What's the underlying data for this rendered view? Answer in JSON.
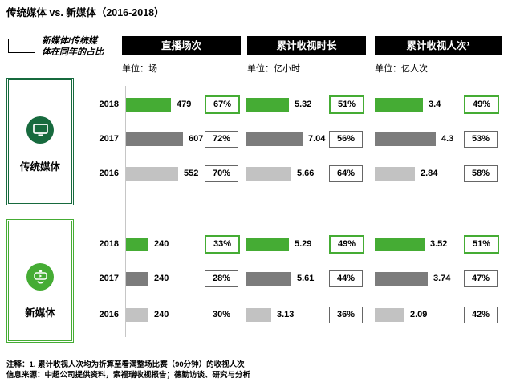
{
  "title": "传统媒体 vs. 新媒体（2016-2018）",
  "legend": {
    "lines": [
      "新媒体/传统媒",
      "体在同年的占比"
    ],
    "full_label": "新媒体/传统媒体在同年的占比"
  },
  "groups": [
    {
      "label": "传统媒体",
      "icon": "tv-icon"
    },
    {
      "label": "新媒体",
      "icon": "vr-player-icon"
    }
  ],
  "footnotes": [
    "注释：1. 累计收视人次均为折算至看满整场比赛（90分钟）的收视人次",
    "信息来源：中超公司提供资料，索福瑞收视报告；德勤访谈、研究与分析"
  ],
  "colors": {
    "bright_green": "#45AC34",
    "dark_green": "#176A3E",
    "dark_gray": "#7C7C7C",
    "light_gray": "#C2C2C2",
    "pct_border_gray": "#666666",
    "axis_gray": "#C6C6C6",
    "header_bg": "#000000",
    "year_colors": {
      "2018": "#45AC34",
      "2017": "#7C7C7C",
      "2016": "#C2C2C2"
    }
  },
  "chart_data": {
    "type": "bar",
    "title": "传统媒体 vs. 新媒体（2016-2018）",
    "categories": [
      "2018",
      "2017",
      "2016"
    ],
    "legend_note": "新媒体/传统媒体在同年的占比",
    "layout_hint": "horizontal grouped bars, two row-groups (传统媒体 / 新媒体), three metric columns, share % shown in outlined boxes, 2018 highlighted green",
    "metrics": [
      {
        "header": "直播场次",
        "unit": "单位：场",
        "series": [
          {
            "name": "传统媒体",
            "values": [
              479,
              607,
              552
            ],
            "share_pct": [
              "67%",
              "72%",
              "70%"
            ]
          },
          {
            "name": "新媒体",
            "values": [
              240,
              240,
              240
            ],
            "share_pct": [
              "33%",
              "28%",
              "30%"
            ]
          }
        ]
      },
      {
        "header": "累计收视时长",
        "unit": "单位：亿小时",
        "series": [
          {
            "name": "传统媒体",
            "values": [
              5.32,
              7.04,
              5.66
            ],
            "share_pct": [
              "51%",
              "56%",
              "64%"
            ]
          },
          {
            "name": "新媒体",
            "values": [
              5.29,
              5.61,
              3.13
            ],
            "share_pct": [
              "49%",
              "44%",
              "36%"
            ]
          }
        ]
      },
      {
        "header": "累计收视人次¹",
        "unit": "单位：亿人次",
        "series": [
          {
            "name": "传统媒体",
            "values": [
              3.4,
              4.3,
              2.84
            ],
            "share_pct": [
              "49%",
              "53%",
              "58%"
            ]
          },
          {
            "name": "新媒体",
            "values": [
              3.52,
              3.74,
              2.09
            ],
            "share_pct": [
              "51%",
              "47%",
              "42%"
            ]
          }
        ]
      }
    ]
  }
}
